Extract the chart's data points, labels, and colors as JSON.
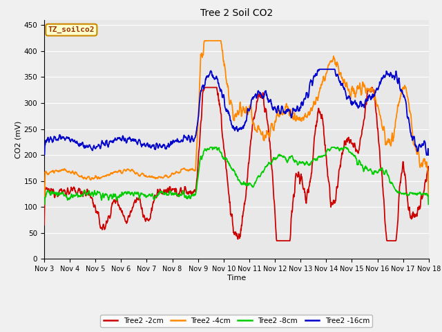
{
  "title": "Tree 2 Soil CO2",
  "xlabel": "Time",
  "ylabel": "CO2 (mV)",
  "annotation": "TZ_soilco2",
  "ylim": [
    0,
    460
  ],
  "yticks": [
    0,
    50,
    100,
    150,
    200,
    250,
    300,
    350,
    400,
    450
  ],
  "xtick_labels": [
    "Nov 3",
    "Nov 4",
    "Nov 5",
    "Nov 6",
    "Nov 7",
    "Nov 8",
    "Nov 9",
    "Nov 10",
    "Nov 11",
    "Nov 12",
    "Nov 13",
    "Nov 14",
    "Nov 15",
    "Nov 16",
    "Nov 17",
    "Nov 18"
  ],
  "colors": {
    "Tree2_2cm": "#cc0000",
    "Tree2_4cm": "#ff8800",
    "Tree2_8cm": "#00cc00",
    "Tree2_16cm": "#0000cc"
  },
  "legend_labels": [
    "Tree2 -2cm",
    "Tree2 -4cm",
    "Tree2 -8cm",
    "Tree2 -16cm"
  ],
  "plot_bg": "#e8e8e8",
  "fig_bg": "#f0f0f0",
  "grid_color": "#ffffff",
  "annotation_bg": "#ffffcc",
  "annotation_border": "#cc8800",
  "annotation_text_color": "#993300"
}
